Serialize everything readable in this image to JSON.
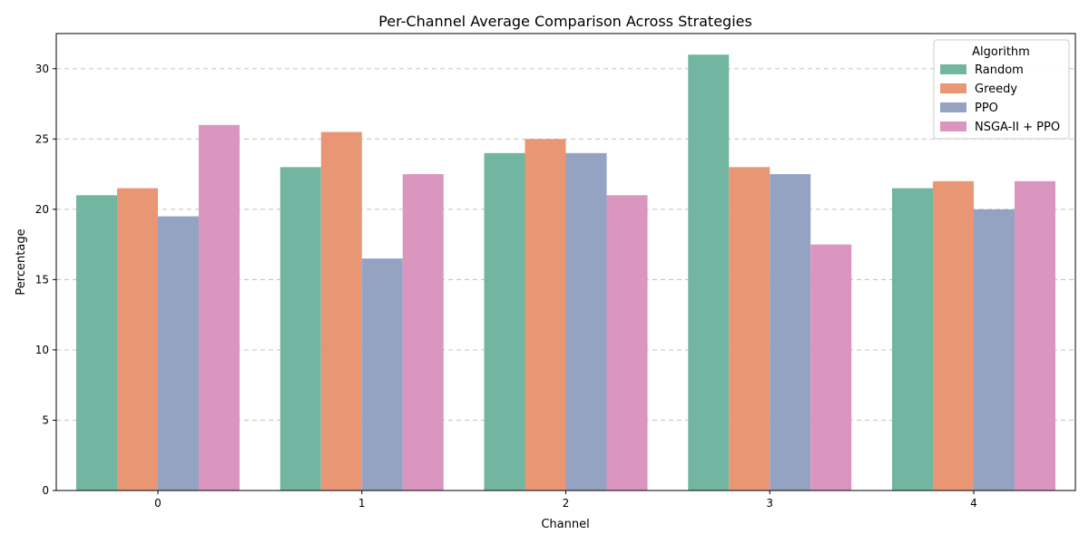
{
  "chart_data": {
    "type": "bar",
    "title": "Per-Channel Average Comparison Across Strategies",
    "xlabel": "Channel",
    "ylabel": "Percentage",
    "categories": [
      "0",
      "1",
      "2",
      "3",
      "4"
    ],
    "ylim": [
      0,
      32.5
    ],
    "yticks": [
      0,
      5,
      10,
      15,
      20,
      25,
      30
    ],
    "grid": "y-dashed",
    "legend": {
      "title": "Algorithm",
      "placement": "top-right"
    },
    "series": [
      {
        "name": "Random",
        "color": "#72b6a1",
        "values": [
          21,
          23,
          24,
          31,
          21.5
        ]
      },
      {
        "name": "Greedy",
        "color": "#e99675",
        "values": [
          21.5,
          25.5,
          25,
          23,
          22
        ]
      },
      {
        "name": "PPO",
        "color": "#95a3c3",
        "values": [
          19.5,
          16.5,
          24,
          22.5,
          20
        ]
      },
      {
        "name": "NSGA-II + PPO",
        "color": "#db96c0",
        "values": [
          26,
          22.5,
          21,
          17.5,
          22
        ]
      }
    ]
  }
}
